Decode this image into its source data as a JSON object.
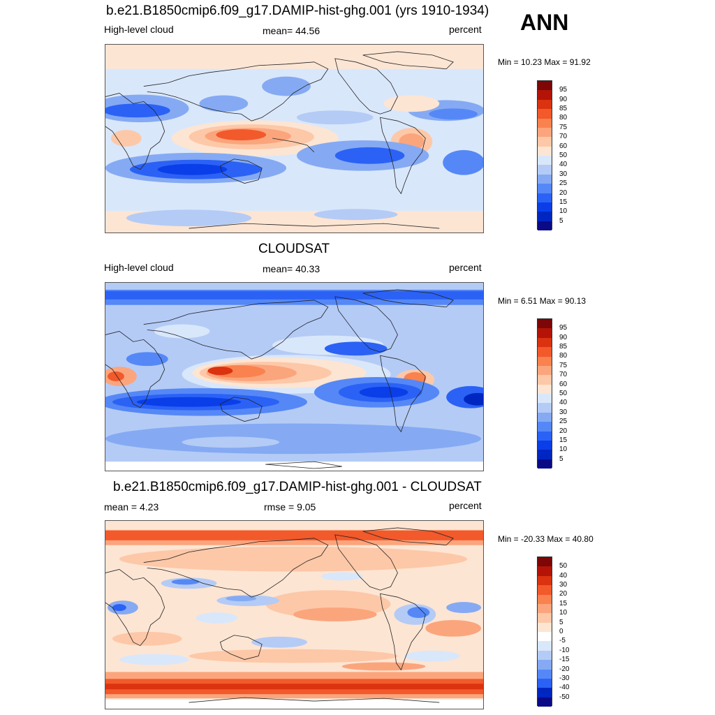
{
  "season": "ANN",
  "palettes": {
    "abs": [
      "#0a0a86",
      "#0026c2",
      "#0a3ee8",
      "#2b62f5",
      "#5588f6",
      "#85aaf3",
      "#b4cbf6",
      "#d9e7fb",
      "#fde5d3",
      "#fdc8a8",
      "#fba57d",
      "#f9824f",
      "#f2592b",
      "#db3210",
      "#b31407",
      "#7d0606"
    ],
    "diff": [
      "#0a0a86",
      "#0026c2",
      "#0a3ee8",
      "#2b62f5",
      "#5588f6",
      "#85aaf3",
      "#b4cbf6",
      "#d9e7fb",
      "#fde5d3",
      "#fdc8a8",
      "#fba57d",
      "#f9824f",
      "#f2592b",
      "#db3210",
      "#b31407",
      "#7d0606"
    ]
  },
  "panels": [
    {
      "title": "b.e21.B1850cmip6.f09_g17.DAMIP-hist-ghg.001 (yrs 1910-1934)",
      "left_label": "High-level cloud",
      "center_label": "mean=  44.56",
      "right_label": "percent",
      "minmax": "Min =  10.23 Max =  91.92",
      "colorbar_ticks": [
        "95",
        "90",
        "85",
        "80",
        "75",
        "70",
        "60",
        "50",
        "40",
        "30",
        "25",
        "20",
        "15",
        "10",
        "5"
      ]
    },
    {
      "title": "CLOUDSAT",
      "left_label": "High-level cloud",
      "center_label": "mean=  40.33",
      "right_label": "percent",
      "minmax": "Min =   6.51 Max =  90.13",
      "colorbar_ticks": [
        "95",
        "90",
        "85",
        "80",
        "75",
        "70",
        "60",
        "50",
        "40",
        "30",
        "25",
        "20",
        "15",
        "10",
        "5"
      ]
    },
    {
      "title": "b.e21.B1850cmip6.f09_g17.DAMIP-hist-ghg.001 - CLOUDSAT",
      "left_label": "mean =   4.23",
      "center_label": "rmse =   9.05",
      "right_label": "percent",
      "minmax": "Min = -20.33 Max =  40.80",
      "colorbar_ticks": [
        "50",
        "40",
        "30",
        "20",
        "15",
        "10",
        "5",
        "0",
        "-5",
        "-10",
        "-15",
        "-20",
        "-30",
        "-40",
        "-50"
      ]
    }
  ]
}
